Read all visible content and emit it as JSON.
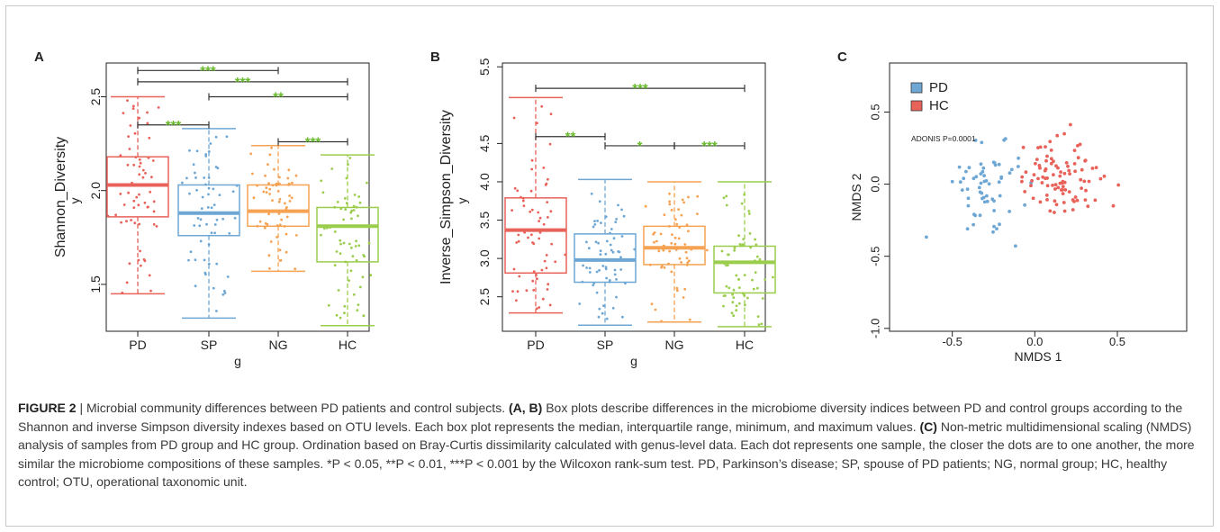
{
  "colors": {
    "PD": "#e8625a",
    "SP": "#6ea7d4",
    "NG": "#f5a253",
    "HC": "#9acd4c",
    "sig": "#6aba2e",
    "bracket": "#333333",
    "frame": "#c8c8c8"
  },
  "chart_data": [
    {
      "type": "box",
      "panel_label": "A",
      "xlabel": "g",
      "ylabel": "Shannon_Diversity",
      "ylabel_sub": "y",
      "ylim": [
        1.25,
        2.68
      ],
      "yticks": [
        "1.5",
        "2.0",
        "2.5"
      ],
      "categories": [
        "PD",
        "SP",
        "NG",
        "HC"
      ],
      "series": [
        {
          "name": "PD",
          "min": 1.45,
          "q1": 1.86,
          "median": 2.03,
          "q3": 2.18,
          "max": 2.5
        },
        {
          "name": "SP",
          "min": 1.32,
          "q1": 1.76,
          "median": 1.88,
          "q3": 2.03,
          "max": 2.33
        },
        {
          "name": "NG",
          "min": 1.57,
          "q1": 1.81,
          "median": 1.89,
          "q3": 2.03,
          "max": 2.24
        },
        {
          "name": "HC",
          "min": 1.28,
          "q1": 1.62,
          "median": 1.81,
          "q3": 1.91,
          "max": 2.19
        }
      ],
      "significance": [
        {
          "from": 0,
          "to": 2,
          "label": "***",
          "y": 2.64
        },
        {
          "from": 0,
          "to": 3,
          "label": "***",
          "y": 2.58
        },
        {
          "from": 1,
          "to": 3,
          "label": "**",
          "y": 2.5
        },
        {
          "from": 0,
          "to": 1,
          "label": "***",
          "y": 2.35
        },
        {
          "from": 2,
          "to": 3,
          "label": "***",
          "y": 2.26
        }
      ]
    },
    {
      "type": "box",
      "panel_label": "B",
      "xlabel": "g",
      "ylabel": "Inverse_Simpson_Diversity",
      "ylabel_sub": "y",
      "ylim": [
        2.05,
        5.55
      ],
      "yticks": [
        "2.5",
        "3.0",
        "3.5",
        "4.0",
        "4.5",
        "5.5"
      ],
      "categories": [
        "PD",
        "SP",
        "NG",
        "HC"
      ],
      "series": [
        {
          "name": "PD",
          "min": 2.29,
          "q1": 2.81,
          "median": 3.37,
          "q3": 3.79,
          "max": 5.1
        },
        {
          "name": "SP",
          "min": 2.13,
          "q1": 2.69,
          "median": 2.98,
          "q3": 3.32,
          "max": 4.03
        },
        {
          "name": "NG",
          "min": 2.17,
          "q1": 2.92,
          "median": 3.14,
          "q3": 3.42,
          "max": 4.0
        },
        {
          "name": "HC",
          "min": 2.11,
          "q1": 2.55,
          "median": 2.95,
          "q3": 3.16,
          "max": 4.0
        }
      ],
      "significance": [
        {
          "from": 0,
          "to": 3,
          "label": "***",
          "y": 5.22
        },
        {
          "from": 0,
          "to": 1,
          "label": "**",
          "y": 4.59
        },
        {
          "from": 1,
          "to": 2,
          "label": "*",
          "y": 4.47
        },
        {
          "from": 2,
          "to": 3,
          "label": "***",
          "y": 4.47
        }
      ]
    },
    {
      "type": "scatter",
      "panel_label": "C",
      "xlabel": "NMDS 1",
      "ylabel": "NMDS 2",
      "xlim": [
        -0.88,
        0.92
      ],
      "ylim": [
        -1.02,
        0.84
      ],
      "xticks": [
        "-0.5",
        "0.0",
        "0.5"
      ],
      "yticks": [
        "-1.0",
        "-0.5",
        "0.0",
        "0.5"
      ],
      "legend": [
        "PD",
        "HC"
      ],
      "legend_position": "top-left",
      "annotation": "ADONIS P=0.0001"
    }
  ],
  "caption": {
    "figure_label": "FIGURE 2",
    "separator": " | ",
    "intro": "Microbial community differences between PD patients and control subjects. ",
    "ref_ab": "(A, B)",
    "text_ab": " Box plots describe differences in the microbiome diversity indices between PD and control groups according to the Shannon and inverse Simpson diversity indexes based on OTU levels. Each box plot represents the median, interquartile range, minimum, and maximum values. ",
    "ref_c": "(C)",
    "text_c": " Non-metric multidimensional scaling (NMDS) analysis of samples from PD group and HC group. Ordination based on Bray-Curtis dissimilarity calculated with genus-level data. Each dot represents one sample, the closer the dots are to one another, the more similar the microbiome compositions of these samples. *P < 0.05, **P < 0.01, ***P < 0.001 by the Wilcoxon rank-sum test. PD, Parkinson’s disease; SP, spouse of PD patients; NG, normal group; HC, healthy control; OTU, operational taxonomic unit."
  }
}
